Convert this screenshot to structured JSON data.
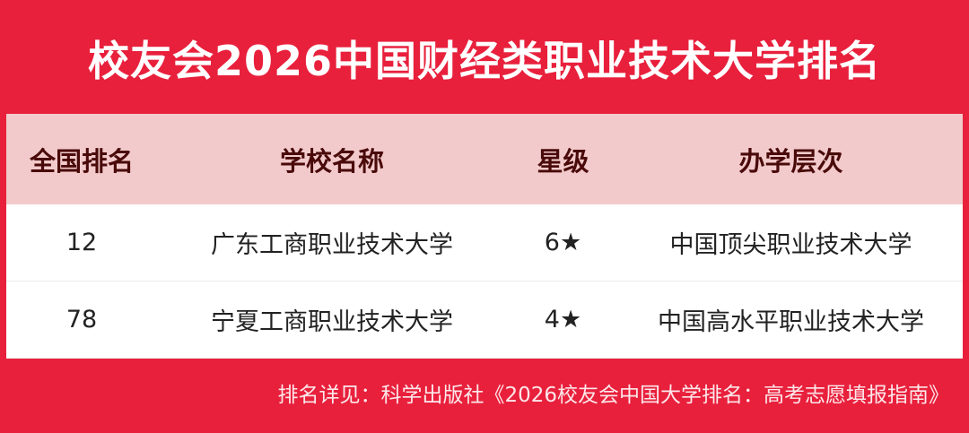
{
  "title": "校友会2026中国财经类职业技术大学排名",
  "table": {
    "headers": [
      "全国排名",
      "学校名称",
      "星级",
      "办学层次"
    ],
    "rows": [
      [
        "12",
        "广东工商职业技术大学",
        "6★",
        "中国顶尖职业技术大学"
      ],
      [
        "78",
        "宁夏工商职业技术大学",
        "4★",
        "中国高水平职业技术大学"
      ]
    ]
  },
  "footer": "排名详见：科学出版社《2026校友会中国大学排名：高考志愿填报指南》",
  "colors": {
    "background": "#e8203c",
    "header_bg": "#f2cacb",
    "header_text": "#4a0a0a"
  }
}
